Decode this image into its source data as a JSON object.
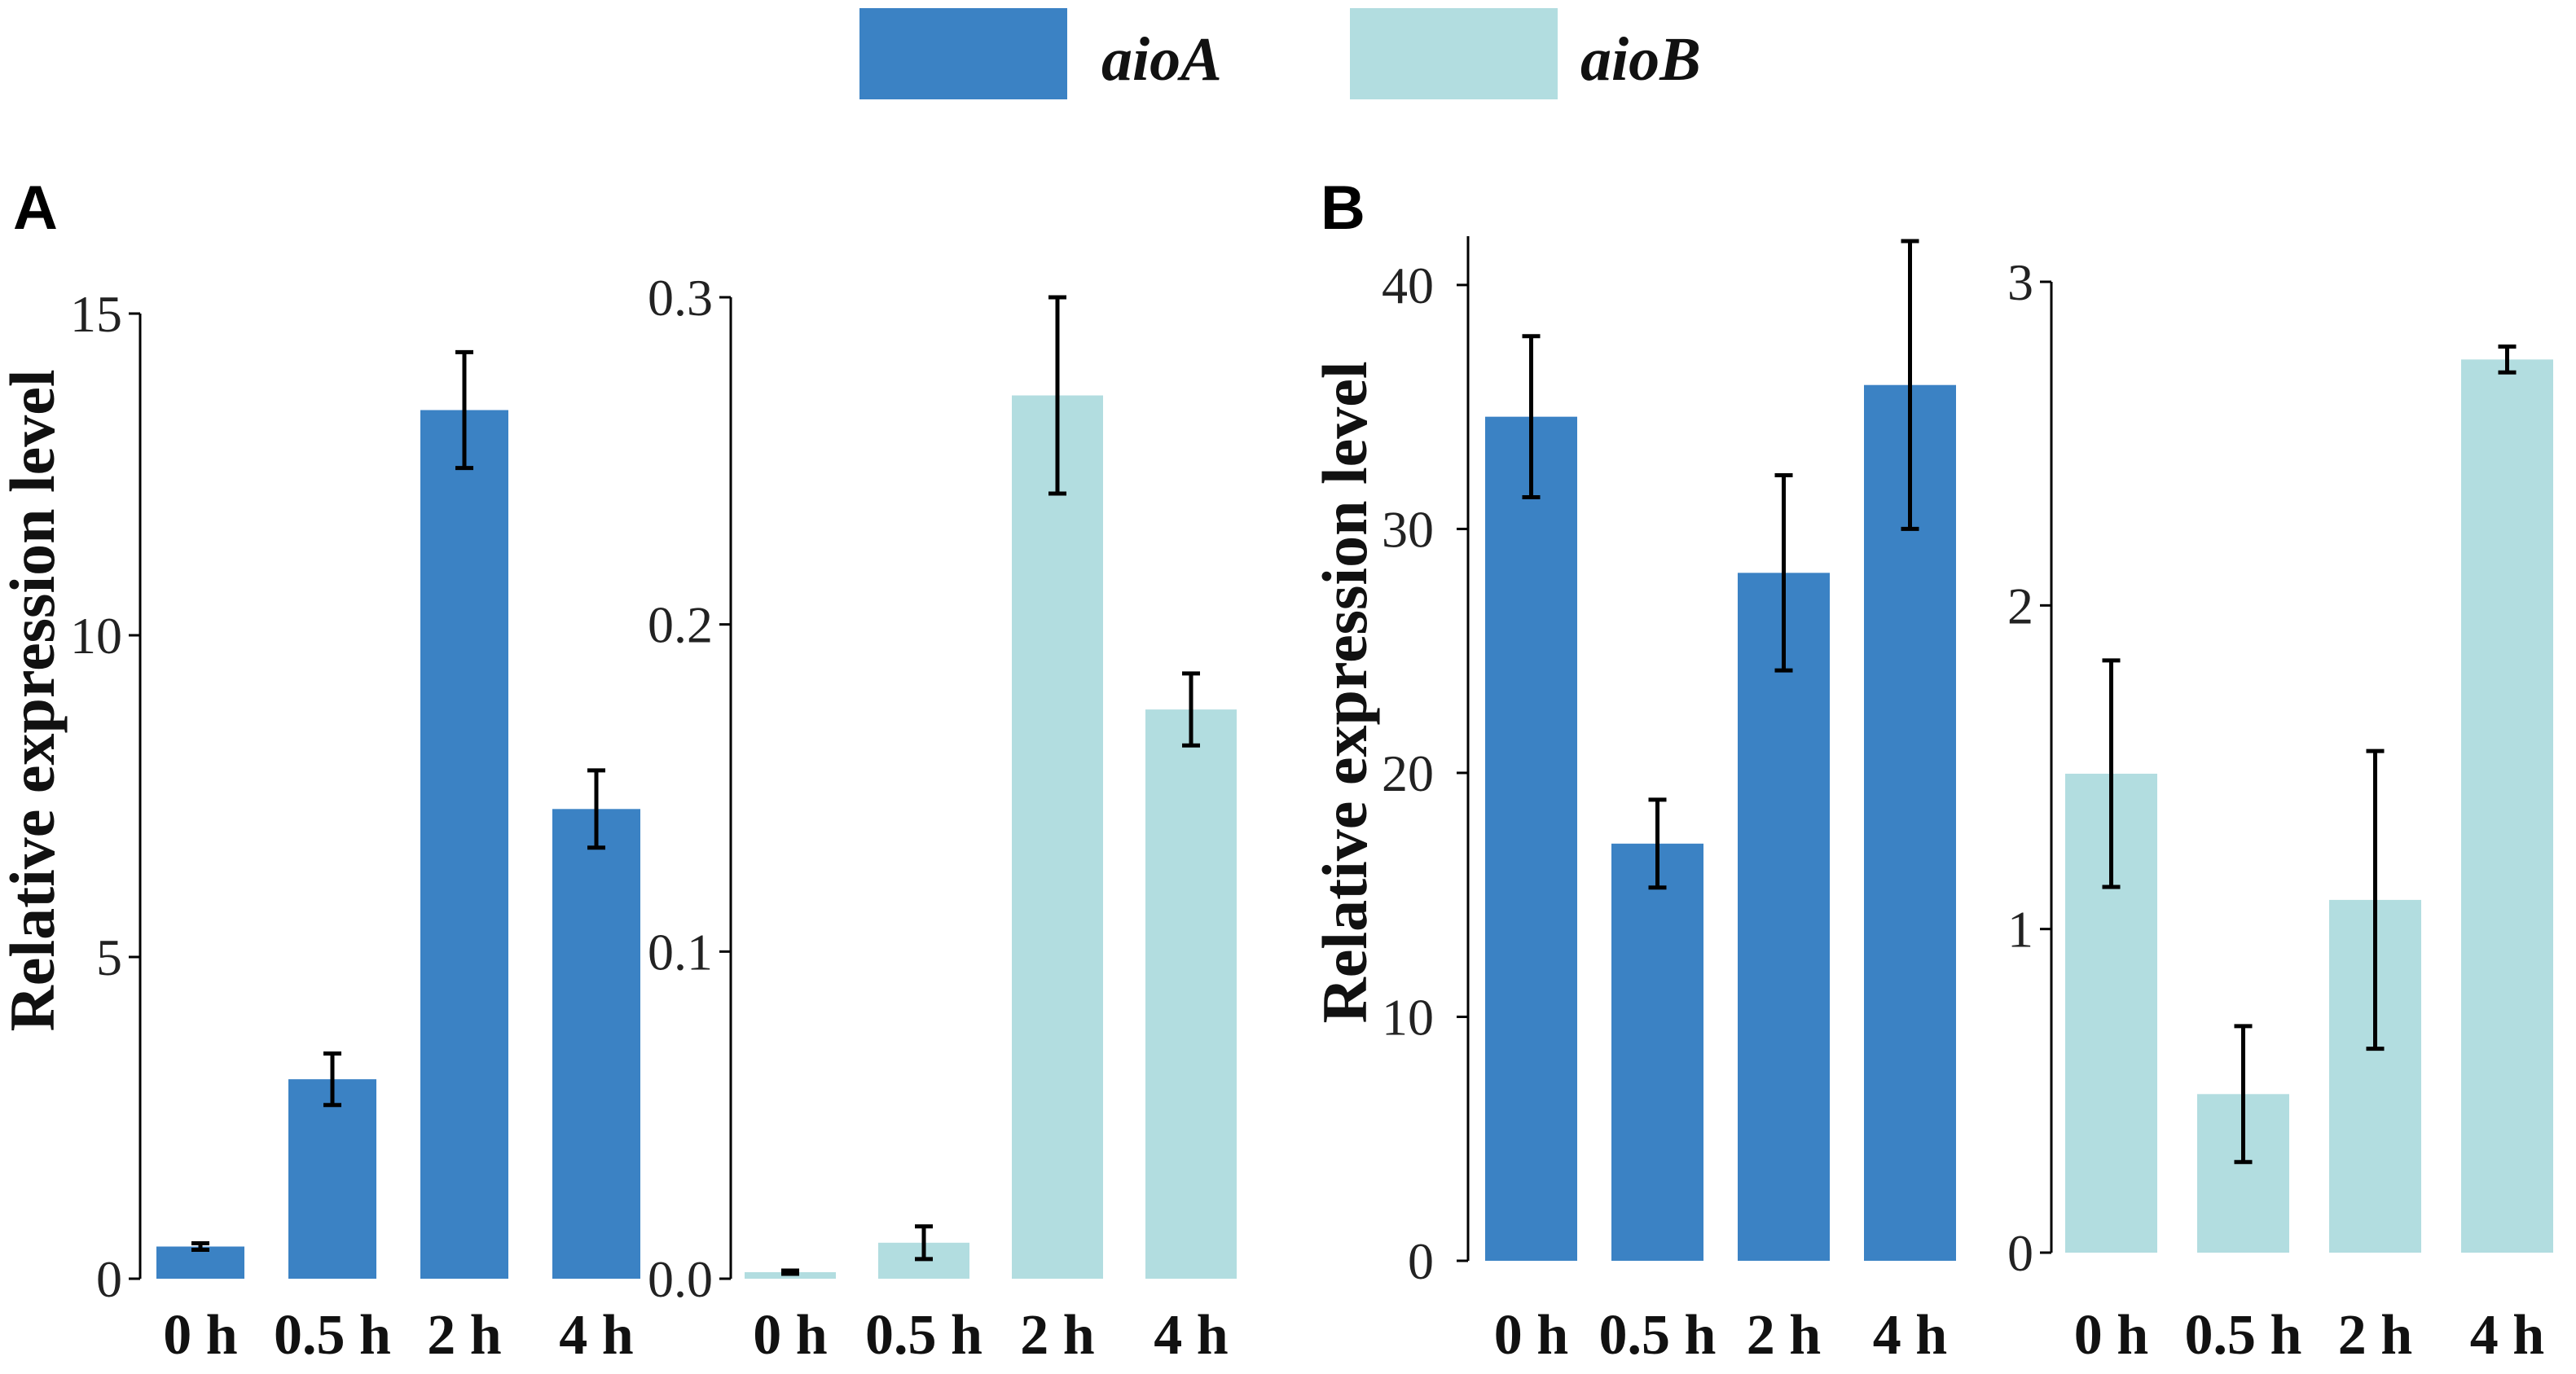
{
  "legend": {
    "items": [
      {
        "label": "aioA",
        "color": "#3b82c4"
      },
      {
        "label": "aioB",
        "color": "#b2dde0"
      }
    ]
  },
  "panels": [
    {
      "letter": "A",
      "ylabel": "Relative expression level"
    },
    {
      "letter": "B",
      "ylabel": "Relative expression level"
    }
  ],
  "chart_data": [
    {
      "type": "bar",
      "panel": "A",
      "series": "aioA",
      "categories": [
        "0 h",
        "0.5 h",
        "2 h",
        "4 h"
      ],
      "values": [
        0.5,
        3.1,
        13.5,
        7.3
      ],
      "errors": [
        0.05,
        0.4,
        0.9,
        0.6
      ],
      "ylim": [
        0,
        15
      ],
      "yticks": [
        0,
        5,
        10,
        15
      ],
      "ytick_labels": [
        "0",
        "5",
        "10",
        "15"
      ],
      "color": "#3b82c4",
      "ylabel": "Relative expression level"
    },
    {
      "type": "bar",
      "panel": "A",
      "series": "aioB",
      "categories": [
        "0 h",
        "0.5 h",
        "2 h",
        "4 h"
      ],
      "values": [
        0.002,
        0.011,
        0.27,
        0.174
      ],
      "errors": [
        0.0005,
        0.005,
        0.03,
        0.011
      ],
      "ylim": [
        0,
        0.3
      ],
      "yticks": [
        0,
        0.1,
        0.2,
        0.3
      ],
      "ytick_labels": [
        "0.0",
        "0.1",
        "0.2",
        "0.3"
      ],
      "color": "#b2dde0",
      "ylabel": ""
    },
    {
      "type": "bar",
      "panel": "B",
      "series": "aioA",
      "categories": [
        "0 h",
        "0.5 h",
        "2 h",
        "4 h"
      ],
      "values": [
        34.6,
        17.1,
        28.2,
        35.9
      ],
      "errors": [
        3.3,
        1.8,
        4.0,
        5.9
      ],
      "ylim": [
        0,
        42
      ],
      "yticks": [
        0,
        10,
        20,
        30,
        40
      ],
      "ytick_labels": [
        "0",
        "10",
        "20",
        "30",
        "40"
      ],
      "color": "#3b82c4",
      "ylabel": "Relative expression level"
    },
    {
      "type": "bar",
      "panel": "B",
      "series": "aioB",
      "categories": [
        "0 h",
        "0.5 h",
        "2 h",
        "4 h"
      ],
      "values": [
        1.48,
        0.49,
        1.09,
        2.76
      ],
      "errors": [
        0.35,
        0.21,
        0.46,
        0.04
      ],
      "ylim": [
        0,
        3
      ],
      "yticks": [
        0,
        1,
        2,
        3
      ],
      "ytick_labels": [
        "0",
        "1",
        "2",
        "3"
      ],
      "color": "#b2dde0",
      "ylabel": ""
    }
  ]
}
